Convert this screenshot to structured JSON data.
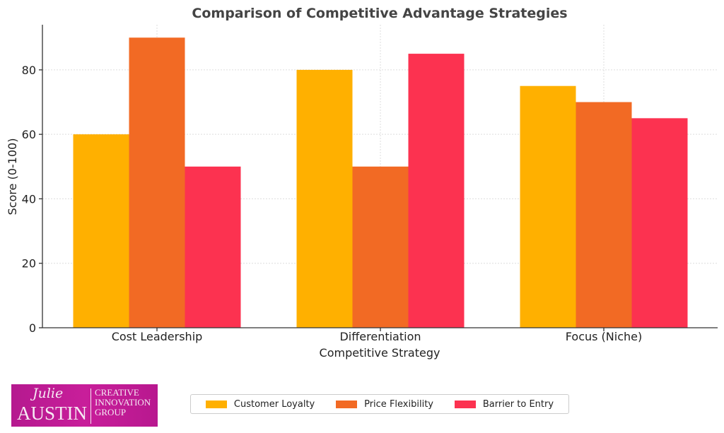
{
  "chart_data": {
    "type": "bar",
    "title": "Comparison of Competitive Advantage Strategies",
    "xlabel": "Competitive Strategy",
    "ylabel": "Score (0-100)",
    "categories": [
      "Cost Leadership",
      "Differentiation",
      "Focus (Niche)"
    ],
    "series": [
      {
        "name": "Customer Loyalty",
        "values": [
          60,
          80,
          75
        ],
        "color": "#ffb000"
      },
      {
        "name": "Price Flexibility",
        "values": [
          90,
          50,
          70
        ],
        "color": "#f26a24"
      },
      {
        "name": "Barrier to Entry",
        "values": [
          50,
          85,
          65
        ],
        "color": "#fc3250"
      }
    ],
    "ylim": [
      0,
      94
    ],
    "yticks": [
      0,
      20,
      40,
      60,
      80
    ],
    "grid": true,
    "legend_position": "bottom"
  },
  "logo": {
    "script": "Julie",
    "name": "AUSTIN",
    "line1": "CREATIVE",
    "line2": "INNOVATION",
    "line3": "GROUP"
  }
}
